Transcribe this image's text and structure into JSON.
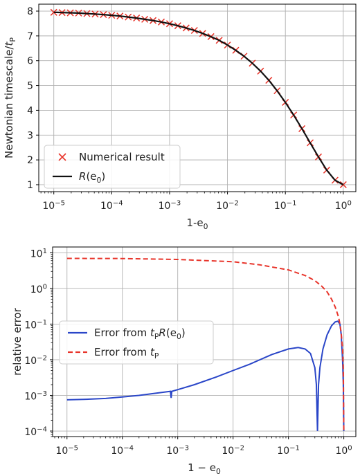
{
  "chart_data": [
    {
      "type": "line",
      "xscale": "log",
      "xlim": [
        5.5e-06,
        1.65
      ],
      "ylim": [
        0.72,
        8.28
      ],
      "xticks": [
        1e-05,
        0.0001,
        0.001,
        0.01,
        0.1,
        1
      ],
      "xtick_labels": [
        [
          "10",
          "−5"
        ],
        [
          "10",
          "−4"
        ],
        [
          "10",
          "−3"
        ],
        [
          "10",
          "−2"
        ],
        [
          "10",
          "−1"
        ],
        [
          "10",
          "0"
        ]
      ],
      "yticks": [
        1,
        2,
        3,
        4,
        5,
        6,
        7,
        8
      ],
      "ytick_labels": [
        "1",
        "2",
        "3",
        "4",
        "5",
        "6",
        "7",
        "8"
      ],
      "xlabel": [
        "1-e",
        "0"
      ],
      "ylabel": [
        "Newtonian timescale/",
        "t",
        "P"
      ],
      "grid": true,
      "legend_position": "lower-left",
      "series": [
        {
          "name": "Numerical result",
          "style": "markers-x",
          "color": "#e8342a",
          "x": [
            1e-05,
            1.389e-05,
            1.931e-05,
            2.683e-05,
            3.728e-05,
            5.179e-05,
            7.197e-05,
            0.0001,
            0.0001389,
            0.0001931,
            0.0002683,
            0.0003728,
            0.0005179,
            0.0007197,
            0.001,
            0.001389,
            0.001931,
            0.002683,
            0.003728,
            0.005179,
            0.007197,
            0.01,
            0.01389,
            0.01931,
            0.02683,
            0.03728,
            0.05179,
            0.07197,
            0.1,
            0.1389,
            0.1931,
            0.2683,
            0.3728,
            0.5179,
            0.7197,
            1
          ],
          "y": [
            7.95,
            7.94,
            7.93,
            7.92,
            7.9,
            7.88,
            7.86,
            7.83,
            7.8,
            7.76,
            7.72,
            7.67,
            7.62,
            7.56,
            7.49,
            7.41,
            7.32,
            7.22,
            7.1,
            6.97,
            6.82,
            6.63,
            6.42,
            6.18,
            5.9,
            5.58,
            5.21,
            4.79,
            4.32,
            3.81,
            3.26,
            2.69,
            2.12,
            1.59,
            1.18,
            1.0
          ]
        },
        {
          "name": "R(e0)",
          "style": "line",
          "color": "#111111",
          "x": [
            1e-05,
            1.389e-05,
            1.931e-05,
            2.683e-05,
            3.728e-05,
            5.179e-05,
            7.197e-05,
            0.0001,
            0.0001389,
            0.0001931,
            0.0002683,
            0.0003728,
            0.0005179,
            0.0007197,
            0.001,
            0.001389,
            0.001931,
            0.002683,
            0.003728,
            0.005179,
            0.007197,
            0.01,
            0.01389,
            0.01931,
            0.02683,
            0.03728,
            0.05179,
            0.07197,
            0.1,
            0.1389,
            0.1931,
            0.2683,
            0.3728,
            0.5179,
            0.7197,
            1
          ],
          "y": [
            7.95,
            7.94,
            7.93,
            7.92,
            7.9,
            7.88,
            7.86,
            7.83,
            7.8,
            7.76,
            7.72,
            7.67,
            7.62,
            7.56,
            7.49,
            7.41,
            7.32,
            7.22,
            7.1,
            6.97,
            6.82,
            6.63,
            6.42,
            6.18,
            5.9,
            5.58,
            5.21,
            4.79,
            4.32,
            3.81,
            3.26,
            2.69,
            2.12,
            1.59,
            1.18,
            1.0
          ]
        }
      ],
      "legend_labels": [
        {
          "parts": [
            [
              "Numerical result",
              false
            ]
          ]
        },
        {
          "parts": [
            [
              "R",
              true
            ],
            [
              "(e",
              false
            ],
            [
              "0",
              false,
              "sub"
            ],
            [
              ")",
              false
            ]
          ]
        }
      ]
    },
    {
      "type": "line",
      "xscale": "log",
      "yscale": "log",
      "xlim": [
        5.5e-06,
        1.65
      ],
      "ylim": [
        7e-05,
        14.5
      ],
      "xticks": [
        1e-05,
        0.0001,
        0.001,
        0.01,
        0.1,
        1
      ],
      "xtick_labels": [
        [
          "10",
          "−5"
        ],
        [
          "10",
          "−4"
        ],
        [
          "10",
          "−3"
        ],
        [
          "10",
          "−2"
        ],
        [
          "10",
          "−1"
        ],
        [
          "10",
          "0"
        ]
      ],
      "yticks": [
        0.0001,
        0.001,
        0.01,
        0.1,
        1,
        10
      ],
      "ytick_labels": [
        [
          "10",
          "−4"
        ],
        [
          "10",
          "−3"
        ],
        [
          "10",
          "−2"
        ],
        [
          "10",
          "−1"
        ],
        [
          "10",
          "0"
        ],
        [
          "10",
          "1"
        ]
      ],
      "xlabel": [
        "1 − e",
        "0"
      ],
      "ylabel": "relative error",
      "grid": true,
      "legend_position": "center-left",
      "series": [
        {
          "name": "Error from tP R(e0)",
          "style": "solid",
          "color": "#2a46c8",
          "x": [
            1e-05,
            2e-05,
            5e-05,
            0.0001,
            0.0002,
            0.0005,
            0.00074,
            0.00076,
            0.00078,
            0.001,
            0.002,
            0.005,
            0.01,
            0.02,
            0.05,
            0.1,
            0.15,
            0.2,
            0.25,
            0.3,
            0.32,
            0.335,
            0.35,
            0.37,
            0.42,
            0.5,
            0.6,
            0.7,
            0.78,
            0.85,
            0.9,
            0.95,
            0.98,
            1.0
          ],
          "y": [
            0.00075,
            0.00077,
            0.00082,
            0.0009,
            0.001,
            0.0012,
            0.0013,
            0.00085,
            0.0013,
            0.00145,
            0.002,
            0.0033,
            0.005,
            0.0075,
            0.014,
            0.02,
            0.022,
            0.02,
            0.015,
            0.006,
            0.002,
            0.0001,
            0.002,
            0.006,
            0.02,
            0.05,
            0.09,
            0.115,
            0.12,
            0.1,
            0.05,
            0.01,
            0.002,
            0.0001
          ]
        },
        {
          "name": "Error from tP",
          "style": "dashed",
          "color": "#e8342a",
          "x": [
            1e-05,
            0.0001,
            0.001,
            0.01,
            0.03,
            0.1,
            0.2,
            0.3,
            0.4,
            0.5,
            0.6,
            0.7,
            0.8,
            0.85,
            0.9,
            0.95,
            0.98,
            1.0
          ],
          "y": [
            6.95,
            6.88,
            6.5,
            5.6,
            4.6,
            3.3,
            2.3,
            1.65,
            1.15,
            0.8,
            0.5,
            0.3,
            0.16,
            0.1,
            0.055,
            0.02,
            0.005,
            0.0001
          ]
        }
      ],
      "legend_labels": [
        {
          "parts": [
            [
              "Error from ",
              false
            ],
            [
              "t",
              true
            ],
            [
              "P",
              false,
              "sub"
            ],
            [
              "R",
              true
            ],
            [
              "(e",
              false
            ],
            [
              "0",
              false,
              "sub"
            ],
            [
              ")",
              false
            ]
          ]
        },
        {
          "parts": [
            [
              "Error from ",
              false
            ],
            [
              "t",
              true
            ],
            [
              "P",
              false,
              "sub"
            ]
          ]
        }
      ]
    }
  ]
}
